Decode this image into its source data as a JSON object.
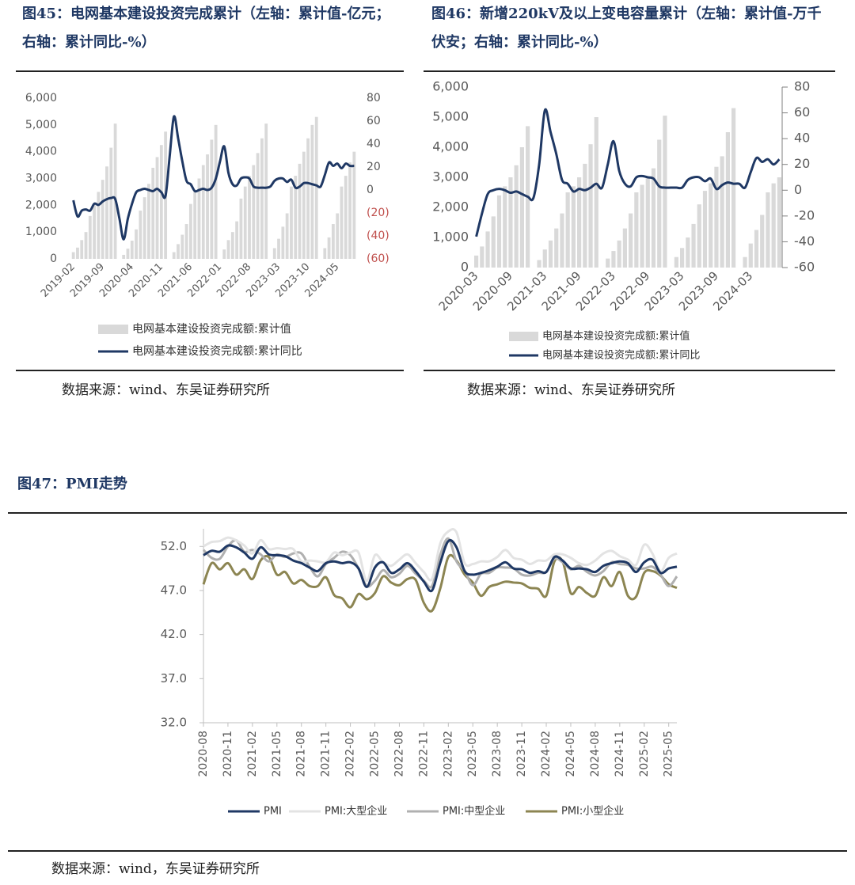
{
  "chart_data": [
    {
      "type": "combo",
      "title": "图45：电网基本建设投资完成累计（左轴：累计值-亿元；右轴：累计同比-%）",
      "source": "数据来源：wind、东吴证券研究所",
      "categories": [
        "2019-02",
        null,
        null,
        null,
        null,
        null,
        null,
        "2019-09",
        null,
        null,
        null,
        null,
        null,
        null,
        "2020-04",
        null,
        null,
        null,
        null,
        null,
        null,
        "2020-11",
        null,
        null,
        null,
        null,
        null,
        null,
        "2021-06",
        null,
        null,
        null,
        null,
        null,
        null,
        "2022-01",
        null,
        null,
        null,
        null,
        null,
        null,
        "2022-08",
        null,
        null,
        null,
        null,
        null,
        null,
        "2023-03",
        null,
        null,
        null,
        null,
        null,
        null,
        "2023-10",
        null,
        null,
        null,
        null,
        null,
        null,
        "2024-05",
        null,
        null,
        null,
        null
      ],
      "series": [
        {
          "name": "电网基本建设投资完成额:累计值",
          "type": "bar",
          "color": "#d9d9d9",
          "values": [
            250,
            420,
            700,
            1000,
            1600,
            2000,
            2500,
            2950,
            3450,
            4150,
            5050,
            null,
            150,
            380,
            680,
            1100,
            1800,
            2300,
            2800,
            3400,
            3800,
            4250,
            4750,
            null,
            250,
            550,
            900,
            1300,
            2050,
            2500,
            3000,
            3500,
            3900,
            4450,
            5000,
            null,
            350,
            700,
            1000,
            1400,
            2250,
            2700,
            3100,
            3500,
            3950,
            4500,
            5050,
            null,
            400,
            750,
            1200,
            1700,
            2700,
            3100,
            3550,
            4000,
            4500,
            5000,
            5300,
            null,
            400,
            800,
            1300,
            1700,
            2700,
            3100,
            3600,
            4000
          ]
        },
        {
          "name": "电网基本建设投资完成额:累计同比",
          "type": "line",
          "axis": "y2",
          "color": "#1f3864",
          "values": [
            -9,
            -23,
            -18,
            -17,
            -18,
            -12,
            -13,
            -10,
            -8,
            -7,
            -8,
            -25,
            -43,
            -25,
            -12,
            -2,
            0,
            1,
            0,
            -1,
            1,
            -2,
            -5,
            30,
            64,
            45,
            25,
            8,
            5,
            -1,
            0,
            1,
            0,
            2,
            10,
            25,
            38,
            15,
            5,
            4,
            10,
            11,
            10,
            3,
            2,
            2,
            2,
            3,
            8,
            10,
            10,
            7,
            9,
            2,
            3,
            6,
            6,
            5,
            4,
            3,
            13,
            24,
            21,
            23,
            19,
            23,
            21,
            21
          ]
        }
      ],
      "ylim": [
        0,
        6000
      ],
      "yticks": [
        0,
        {
          "value": 1000,
          "label": "1,000"
        },
        {
          "value": 2000,
          "label": "2,000"
        },
        {
          "value": 3000,
          "label": "3,000"
        },
        {
          "value": 4000,
          "label": "4,000"
        },
        {
          "value": 5000,
          "label": "5,000"
        },
        {
          "value": 6000,
          "label": "6,000"
        }
      ],
      "y2lim": [
        -60,
        80
      ],
      "y2ticks": [
        {
          "value": -60,
          "label": "(60)"
        },
        {
          "value": -40,
          "label": "(40)"
        },
        {
          "value": -20,
          "label": "(20)"
        },
        0,
        20,
        40,
        60,
        80
      ],
      "y2tick_negative_color": "#c0504d"
    },
    {
      "type": "combo",
      "title": "图46：新增220kV及以上变电容量累计（左轴：累计值-万千伏安；右轴：累计同比-%）",
      "source": "数据来源：wind、东吴证券研究所",
      "categories": [
        "2020-03",
        null,
        null,
        null,
        null,
        null,
        "2020-09",
        null,
        null,
        null,
        null,
        null,
        "2021-03",
        null,
        null,
        null,
        null,
        null,
        "2021-09",
        null,
        null,
        null,
        null,
        null,
        "2022-03",
        null,
        null,
        null,
        null,
        null,
        "2022-09",
        null,
        null,
        null,
        null,
        null,
        "2023-03",
        null,
        null,
        null,
        null,
        null,
        "2023-09",
        null,
        null,
        null,
        null,
        null,
        "2024-03",
        null,
        null,
        null,
        null,
        null
      ],
      "series": [
        {
          "name": "电网基本建设投资完成额:累计值",
          "type": "bar",
          "color": "#d9d9d9",
          "values": [
            400,
            700,
            1200,
            1700,
            2400,
            2700,
            3000,
            3400,
            4000,
            4700,
            null,
            250,
            600,
            900,
            1300,
            1800,
            2500,
            2700,
            3000,
            3450,
            4100,
            5000,
            null,
            300,
            550,
            900,
            1300,
            1800,
            2500,
            2750,
            3000,
            3300,
            4250,
            5050,
            null,
            350,
            650,
            1000,
            1450,
            2100,
            2550,
            2800,
            3350,
            3700,
            4500,
            5300,
            null,
            350,
            800,
            1250,
            1750,
            2500,
            2800,
            3000
          ]
        },
        {
          "name": "电网基本建设投资完成额:累计同比",
          "type": "line",
          "axis": "y2",
          "color": "#1f3864",
          "values": [
            -36,
            -18,
            -3,
            0,
            1,
            0,
            -2,
            -1,
            -3,
            -5,
            -6,
            20,
            62,
            45,
            28,
            8,
            5,
            -1,
            1,
            0,
            2,
            5,
            2,
            20,
            38,
            15,
            5,
            3,
            10,
            11,
            10,
            9,
            3,
            2,
            2,
            2,
            2,
            8,
            10,
            10,
            7,
            9,
            1,
            4,
            6,
            5,
            5,
            2,
            14,
            25,
            22,
            24,
            20,
            24
          ]
        }
      ],
      "ylim": [
        0,
        6000
      ],
      "yticks": [
        0,
        {
          "value": 1000,
          "label": "1,000"
        },
        {
          "value": 2000,
          "label": "2,000"
        },
        {
          "value": 3000,
          "label": "3,000"
        },
        {
          "value": 4000,
          "label": "4,000"
        },
        {
          "value": 5000,
          "label": "5,000"
        },
        {
          "value": 6000,
          "label": "6,000"
        }
      ],
      "y2lim": [
        -60,
        80
      ],
      "y2ticks": [
        -60,
        -40,
        -20,
        0,
        20,
        40,
        60,
        80
      ]
    },
    {
      "type": "line",
      "title": "图47：PMI走势",
      "source": "数据来源：wind，东吴证券研究所",
      "categories": [
        "2020-08",
        null,
        null,
        "2020-11",
        null,
        null,
        "2021-02",
        null,
        null,
        "2021-05",
        null,
        null,
        "2021-08",
        null,
        null,
        "2021-11",
        null,
        null,
        "2022-02",
        null,
        null,
        "2022-05",
        null,
        null,
        "2022-08",
        null,
        null,
        "2022-11",
        null,
        null,
        "2023-02",
        null,
        null,
        "2023-05",
        null,
        null,
        "2023-08",
        null,
        null,
        "2023-11",
        null,
        null,
        "2024-02",
        null,
        null,
        "2024-05",
        null,
        null,
        "2024-08",
        null,
        null,
        "2024-11",
        null,
        null,
        "2025-02",
        null,
        null,
        "2025-05",
        null
      ],
      "series": [
        {
          "name": "PMI",
          "color": "#1f3864",
          "values": [
            51.0,
            51.5,
            51.4,
            52.1,
            51.9,
            51.3,
            50.6,
            51.9,
            51.1,
            51.0,
            50.9,
            50.4,
            50.1,
            49.6,
            49.2,
            50.1,
            50.3,
            50.1,
            50.2,
            49.5,
            47.4,
            49.6,
            50.2,
            49.0,
            49.4,
            50.1,
            49.2,
            48.0,
            47.0,
            50.1,
            52.6,
            51.9,
            49.2,
            48.8,
            49.0,
            49.3,
            49.7,
            50.2,
            49.5,
            49.4,
            49.0,
            49.2,
            49.1,
            50.8,
            50.4,
            49.5,
            49.5,
            49.4,
            49.1,
            49.8,
            50.1,
            50.3,
            50.1,
            49.1,
            50.2,
            50.5,
            49.0,
            49.5,
            49.7
          ]
        },
        {
          "name": "PMI:大型企业",
          "color": "#e3e3e3",
          "values": [
            52.0,
            52.5,
            52.6,
            53.0,
            52.7,
            52.1,
            51.2,
            52.7,
            51.7,
            51.8,
            51.7,
            51.7,
            50.3,
            50.4,
            50.3,
            50.2,
            51.3,
            51.0,
            51.3,
            51.3,
            48.1,
            51.0,
            50.2,
            49.8,
            50.5,
            51.1,
            50.1,
            49.1,
            48.3,
            52.3,
            53.7,
            53.6,
            50.1,
            50.0,
            50.3,
            50.3,
            50.8,
            51.6,
            50.7,
            50.5,
            50.0,
            50.4,
            50.4,
            51.1,
            51.1,
            50.7,
            50.1,
            49.9,
            50.4,
            51.2,
            51.5,
            50.9,
            50.5,
            49.9,
            52.2,
            51.2,
            49.2,
            50.7,
            51.2
          ]
        },
        {
          "name": "PMI:中型企业",
          "color": "#b0b0b0",
          "values": [
            51.6,
            50.7,
            50.6,
            52.0,
            52.7,
            51.4,
            51.6,
            51.1,
            50.3,
            51.1,
            50.8,
            51.2,
            51.2,
            49.7,
            48.6,
            50.0,
            50.7,
            51.4,
            51.0,
            49.5,
            47.5,
            48.1,
            49.3,
            48.5,
            48.9,
            49.8,
            48.9,
            48.1,
            47.5,
            51.0,
            52.9,
            50.3,
            49.2,
            47.6,
            48.9,
            49.0,
            49.6,
            49.6,
            49.5,
            48.8,
            48.7,
            49.0,
            49.1,
            50.6,
            50.2,
            49.4,
            49.8,
            49.1,
            48.7,
            49.2,
            50.2,
            50.0,
            49.9,
            49.5,
            49.5,
            49.7,
            48.8,
            47.5,
            48.6
          ]
        },
        {
          "name": "PMI:小型企业",
          "color": "#8c8552",
          "values": [
            47.7,
            50.1,
            49.4,
            50.1,
            48.8,
            49.4,
            48.3,
            50.4,
            50.8,
            48.8,
            49.1,
            47.8,
            48.2,
            47.5,
            47.5,
            48.5,
            46.5,
            46.1,
            45.1,
            46.6,
            46.0,
            46.7,
            48.6,
            47.9,
            47.6,
            48.3,
            48.2,
            45.6,
            44.7,
            47.2,
            50.8,
            50.4,
            48.8,
            47.9,
            46.4,
            47.4,
            47.7,
            48.0,
            47.9,
            47.8,
            47.3,
            47.2,
            46.4,
            50.3,
            50.3,
            46.7,
            47.4,
            46.7,
            46.4,
            48.5,
            47.5,
            49.1,
            46.4,
            46.3,
            49.0,
            49.2,
            48.7,
            47.7,
            47.3
          ]
        }
      ],
      "ylim": [
        32,
        54
      ],
      "yticks": [
        {
          "value": 32,
          "label": "32.0"
        },
        {
          "value": 37,
          "label": "37.0"
        },
        {
          "value": 42,
          "label": "42.0"
        },
        {
          "value": 47,
          "label": "47.0"
        },
        {
          "value": 52,
          "label": "52.0"
        }
      ]
    }
  ]
}
